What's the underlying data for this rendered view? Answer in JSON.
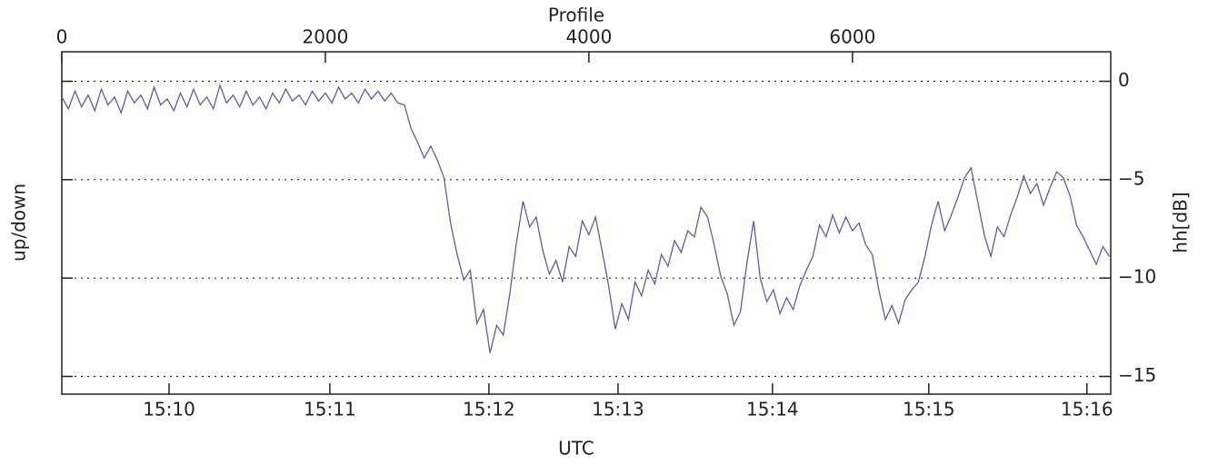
{
  "chart_data": {
    "type": "line",
    "xlabel": "UTC",
    "x2label": "Profile",
    "ylabel": "up/down",
    "y2label": "hh[dB]",
    "xlim": [
      0,
      7960
    ],
    "ylim": [
      -15.9,
      1.5
    ],
    "xticks": [
      {
        "value": 814,
        "label": "15:10"
      },
      {
        "value": 2034,
        "label": "15:11"
      },
      {
        "value": 3241,
        "label": "15:12"
      },
      {
        "value": 4221,
        "label": "15:13"
      },
      {
        "value": 5393,
        "label": "15:14"
      },
      {
        "value": 6579,
        "label": "15:15"
      },
      {
        "value": 7779,
        "label": "15:16"
      }
    ],
    "x2ticks": [
      0,
      2000,
      4000,
      6000
    ],
    "y2ticks": [
      0,
      {
        "value": -5,
        "label": "−5"
      },
      {
        "value": -10,
        "label": "−10"
      },
      {
        "value": -15,
        "label": "−15"
      }
    ],
    "grid": true,
    "x": [
      0,
      50,
      100,
      150,
      200,
      250,
      300,
      350,
      400,
      450,
      500,
      550,
      600,
      650,
      700,
      750,
      800,
      850,
      900,
      950,
      1000,
      1050,
      1100,
      1150,
      1200,
      1250,
      1300,
      1350,
      1400,
      1450,
      1500,
      1550,
      1600,
      1650,
      1700,
      1750,
      1800,
      1850,
      1900,
      1950,
      2000,
      2050,
      2100,
      2150,
      2200,
      2250,
      2300,
      2350,
      2400,
      2450,
      2500,
      2550,
      2600,
      2650,
      2700,
      2750,
      2800,
      2850,
      2900,
      2950,
      3000,
      3050,
      3100,
      3150,
      3200,
      3250,
      3300,
      3350,
      3400,
      3450,
      3500,
      3550,
      3600,
      3650,
      3700,
      3750,
      3800,
      3850,
      3900,
      3950,
      4000,
      4050,
      4100,
      4150,
      4200,
      4250,
      4300,
      4350,
      4400,
      4450,
      4500,
      4550,
      4600,
      4650,
      4700,
      4750,
      4800,
      4850,
      4900,
      4950,
      5000,
      5050,
      5100,
      5150,
      5200,
      5250,
      5300,
      5350,
      5400,
      5450,
      5500,
      5550,
      5600,
      5650,
      5700,
      5750,
      5800,
      5850,
      5900,
      5950,
      6000,
      6050,
      6100,
      6150,
      6200,
      6250,
      6300,
      6350,
      6400,
      6450,
      6500,
      6550,
      6600,
      6650,
      6700,
      6750,
      6800,
      6850,
      6900,
      6950,
      7000,
      7050,
      7100,
      7150,
      7200,
      7250,
      7300,
      7350,
      7400,
      7450,
      7500,
      7550,
      7600,
      7650,
      7700,
      7750,
      7800,
      7850,
      7900,
      7950
    ],
    "series": [
      {
        "color": "#5d5f9c",
        "axis": "y2",
        "values": [
          -0.8,
          -1.4,
          -0.5,
          -1.3,
          -0.7,
          -1.5,
          -0.4,
          -1.2,
          -0.8,
          -1.6,
          -0.5,
          -1.1,
          -0.7,
          -1.4,
          -0.3,
          -1.2,
          -0.9,
          -1.5,
          -0.6,
          -1.3,
          -0.4,
          -1.2,
          -0.8,
          -1.4,
          -0.2,
          -1.1,
          -0.7,
          -1.3,
          -0.5,
          -1.2,
          -0.8,
          -1.4,
          -0.6,
          -1.1,
          -0.4,
          -1.0,
          -0.7,
          -1.2,
          -0.5,
          -1.0,
          -0.6,
          -1.1,
          -0.3,
          -0.9,
          -0.6,
          -1.1,
          -0.4,
          -0.9,
          -0.5,
          -1.0,
          -0.6,
          -1.1,
          -1.2,
          -2.4,
          -3.1,
          -3.9,
          -3.3,
          -4.0,
          -4.9,
          -7.2,
          -8.8,
          -10.1,
          -9.6,
          -12.3,
          -11.6,
          -13.8,
          -12.4,
          -12.9,
          -10.8,
          -8.2,
          -6.1,
          -7.4,
          -6.9,
          -8.6,
          -9.8,
          -9.1,
          -10.2,
          -8.4,
          -8.9,
          -7.1,
          -7.8,
          -6.9,
          -8.6,
          -10.4,
          -12.6,
          -11.3,
          -12.1,
          -10.2,
          -10.9,
          -9.6,
          -10.3,
          -8.8,
          -9.4,
          -8.1,
          -8.7,
          -7.6,
          -7.9,
          -6.4,
          -6.9,
          -8.3,
          -9.9,
          -10.8,
          -12.4,
          -11.7,
          -9.2,
          -7.1,
          -10.0,
          -11.2,
          -10.6,
          -11.8,
          -11.0,
          -11.6,
          -10.4,
          -9.6,
          -8.9,
          -7.3,
          -7.9,
          -6.8,
          -7.7,
          -6.9,
          -7.6,
          -7.2,
          -8.3,
          -8.8,
          -10.6,
          -12.1,
          -11.4,
          -12.3,
          -11.1,
          -10.6,
          -10.2,
          -8.9,
          -7.3,
          -6.1,
          -7.6,
          -6.8,
          -5.9,
          -4.9,
          -4.4,
          -6.1,
          -7.8,
          -8.9,
          -7.4,
          -7.9,
          -6.8,
          -5.9,
          -4.8,
          -5.7,
          -5.2,
          -6.3,
          -5.4,
          -4.6,
          -4.9,
          -5.8,
          -7.3,
          -7.9,
          -8.6,
          -9.3,
          -8.4,
          -8.9
        ]
      }
    ]
  }
}
